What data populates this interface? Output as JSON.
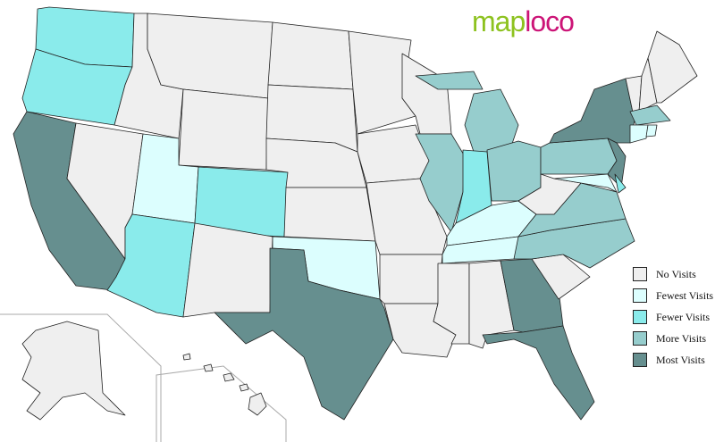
{
  "logo": {
    "part1": "map",
    "part2": "loco"
  },
  "legend": [
    {
      "key": "none",
      "label": "No Visits",
      "color": "#efefef"
    },
    {
      "key": "fewest",
      "label": "Fewest Visits",
      "color": "#dcfefe"
    },
    {
      "key": "fewer",
      "label": "Fewer Visits",
      "color": "#8aebeb"
    },
    {
      "key": "more",
      "label": "More Visits",
      "color": "#96cdcd"
    },
    {
      "key": "most",
      "label": "Most Visits",
      "color": "#668f8f"
    }
  ],
  "states": {
    "WA": "fewer",
    "OR": "fewer",
    "CA": "most",
    "NV": "none",
    "ID": "none",
    "MT": "none",
    "WY": "none",
    "UT": "fewest",
    "CO": "fewer",
    "AZ": "fewer",
    "NM": "none",
    "ND": "none",
    "SD": "none",
    "NE": "none",
    "KS": "none",
    "OK": "fewest",
    "TX": "most",
    "MN": "none",
    "IA": "none",
    "MO": "none",
    "AR": "none",
    "LA": "none",
    "WI": "none",
    "IL": "more",
    "MI": "more",
    "IN": "fewer",
    "OH": "more",
    "KY": "fewest",
    "TN": "fewest",
    "MS": "none",
    "AL": "none",
    "GA": "most",
    "FL": "most",
    "SC": "none",
    "NC": "more",
    "VA": "more",
    "WV": "none",
    "PA": "more",
    "NY": "most",
    "NJ": "most",
    "MD": "fewest",
    "DE": "fewer",
    "VT": "none",
    "NH": "none",
    "ME": "none",
    "MA": "more",
    "CT": "fewest",
    "RI": "fewest",
    "AK": "none",
    "HI": "none"
  }
}
